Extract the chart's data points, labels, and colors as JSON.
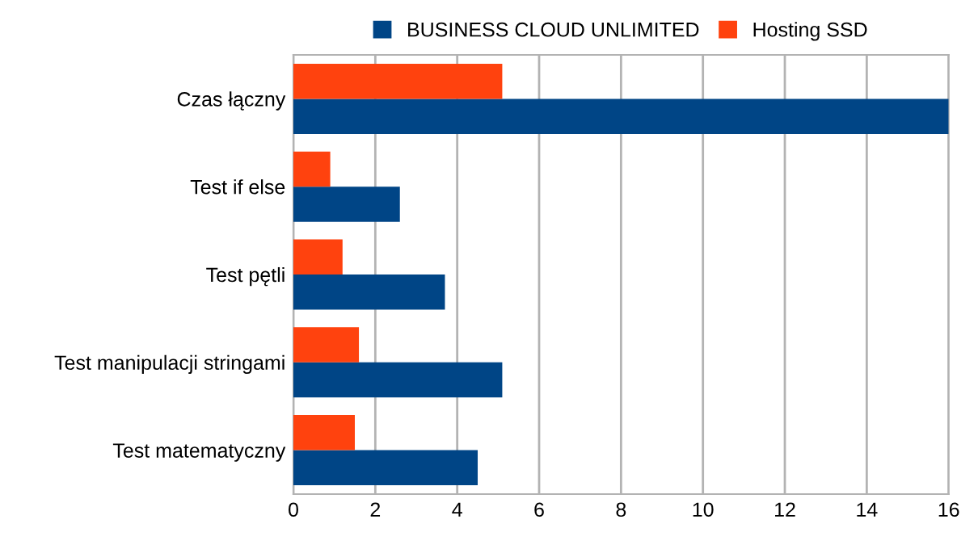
{
  "chart_data": {
    "type": "bar",
    "orientation": "horizontal",
    "categories": [
      "Czas łączny",
      "Test if else",
      "Test pętli",
      "Test manipulacji stringami",
      "Test matematyczny"
    ],
    "series": [
      {
        "name": "BUSINESS CLOUD UNLIMITED",
        "color": "#004586",
        "values": [
          16.0,
          2.6,
          3.7,
          5.1,
          4.5
        ]
      },
      {
        "name": "Hosting SSD",
        "color": "#ff420e",
        "values": [
          5.1,
          0.9,
          1.2,
          1.6,
          1.5
        ]
      }
    ],
    "xlim": [
      0,
      16
    ],
    "xticks": [
      0,
      2,
      4,
      6,
      8,
      10,
      12,
      14,
      16
    ],
    "grid": "x",
    "legend": "top"
  }
}
